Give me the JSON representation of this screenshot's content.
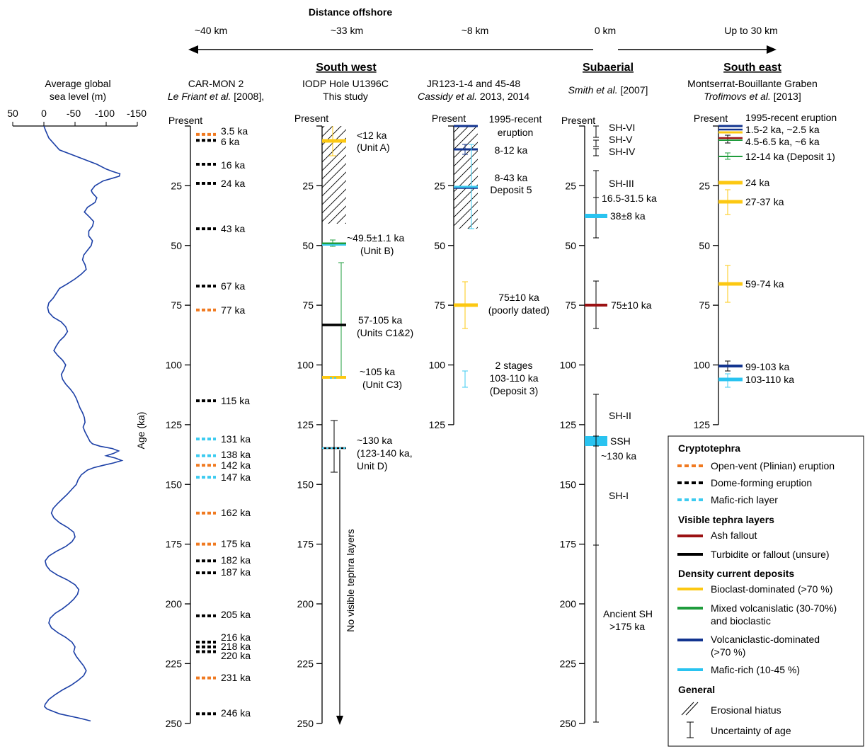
{
  "header": {
    "title": "Distance offshore",
    "distances": [
      "~40 km",
      "~33 km",
      "~8 km",
      "0 km",
      "Up to 30 km"
    ],
    "regions": [
      "South west",
      "Subaerial",
      "South east"
    ]
  },
  "sea_level": {
    "title_line1": "Average global",
    "title_line2": "sea level (m)",
    "tick_labels": [
      "50",
      "0",
      "-50",
      "-100",
      "-150"
    ]
  },
  "columns": {
    "carmon": {
      "title1": "CAR-MON 2",
      "title2_italic": "Le Friant et al.",
      "title2_rest": " [2008],",
      "present": "Present",
      "axis_title": "Age (ka)"
    },
    "iodp": {
      "title1": "IODP Hole U1396C",
      "title2": "This study",
      "present": "Present",
      "vertical_note": "No visible tephra layers"
    },
    "jr": {
      "title1": "JR123-1-4 and 45-48",
      "title2_italic": "Cassidy et al.",
      "title2_rest": " 2013, 2014",
      "present": "Present"
    },
    "smith": {
      "title2_italic": "Smith et al.",
      "title2_rest": " [2007]",
      "present": "Present"
    },
    "trof": {
      "title1": "Montserrat-Bouillante Graben",
      "title2_italic": "Trofimovs et al.",
      "title2_rest": " [2013]",
      "present": "Present"
    }
  },
  "axis_ticks": [
    "25",
    "50",
    "75",
    "100",
    "125",
    "150",
    "175",
    "200",
    "225",
    "250"
  ],
  "labels": {
    "carmon": [
      "3.5 ka",
      "6 ka",
      "16 ka",
      "24 ka",
      "43 ka",
      "67 ka",
      "77 ka",
      "115 ka",
      "131 ka",
      "138 ka",
      "142 ka",
      "147 ka",
      "162 ka",
      "175 ka",
      "182 ka",
      "187 ka",
      "205 ka",
      "216 ka",
      "218 ka",
      "220 ka",
      "231 ka",
      "246 ka"
    ],
    "iodp": [
      "<12 ka",
      "(Unit A)",
      "~49.5±1.1 ka",
      "(Unit B)",
      "57-105 ka",
      "(Units C1&2)",
      "~105 ka",
      "(Unit C3)",
      "~130 ka",
      "(123-140 ka,",
      "Unit D)"
    ],
    "jr": [
      "1995-recent",
      "eruption",
      "8-12 ka",
      "8-43 ka",
      "Deposit 5",
      "75±10 ka",
      "(poorly dated)",
      "2 stages",
      "103-110 ka",
      "(Deposit 3)"
    ],
    "smith": [
      "SH-VI",
      "SH-V",
      "SH-IV",
      "SH-III",
      "16.5-31.5 ka",
      "38±8 ka",
      "75±10 ka",
      "SH-II",
      "SSH",
      "~130 ka",
      "SH-I",
      "Ancient SH",
      ">175 ka"
    ],
    "trof": [
      "1995-recent eruption",
      "1.5-2 ka, ~2.5 ka",
      "4.5-6.5 ka, ~6 ka",
      "12-14 ka (Deposit 1)",
      "24 ka",
      "27-37 ka",
      "59-74 ka",
      "99-103 ka",
      "103-110 ka"
    ]
  },
  "legend": {
    "crypto_title": "Cryptotephra",
    "crypto_items": [
      "Open-vent (Plinian) eruption",
      "Dome-forming eruption",
      "Mafic-rich layer"
    ],
    "visible_title": "Visible tephra layers",
    "visible_items": [
      "Ash fallout",
      "Turbidite or fallout (unsure)"
    ],
    "density_title": "Density current deposits",
    "density_items": [
      "Bioclast-dominated (>70 %)",
      "Mixed volcanislatic (30-70%)",
      "and bioclastic",
      "Volcaniclastic-dominated",
      "(>70 %)",
      "Mafic-rich (10-45 %)"
    ],
    "general_title": "General",
    "general_items": [
      "Erosional hiatus",
      "Uncertainty of age"
    ]
  },
  "colors": {
    "open_vent": "#f07a21",
    "dome": "#000000",
    "mafic_crypto": "#3ccbf0",
    "ash_fallout": "#9b1113",
    "turbidite": "#000000",
    "bioclast": "#fcc812",
    "mixed": "#1f9c3c",
    "volcaniclastic": "#12348f",
    "mafic_rich": "#29c3f0",
    "sea_level_curve": "#1b3fa6",
    "uncertainty_cyan": "#3ccbf0",
    "uncertainty_green": "#1f9c3c",
    "uncertainty_yellow": "#fcc812"
  },
  "sea_level_curve": [
    [
      0,
      0
    ],
    [
      2,
      -3
    ],
    [
      5,
      -8
    ],
    [
      10,
      -25
    ],
    [
      12,
      -45
    ],
    [
      14,
      -65
    ],
    [
      16,
      -85
    ],
    [
      18,
      -100
    ],
    [
      19,
      -110
    ],
    [
      20,
      -122
    ],
    [
      21,
      -121
    ],
    [
      22,
      -108
    ],
    [
      23,
      -95
    ],
    [
      25,
      -82
    ],
    [
      27,
      -76
    ],
    [
      28,
      -78
    ],
    [
      30,
      -85
    ],
    [
      32,
      -82
    ],
    [
      34,
      -70
    ],
    [
      36,
      -65
    ],
    [
      38,
      -73
    ],
    [
      40,
      -80
    ],
    [
      42,
      -78
    ],
    [
      44,
      -72
    ],
    [
      46,
      -72
    ],
    [
      48,
      -78
    ],
    [
      50,
      -76
    ],
    [
      52,
      -70
    ],
    [
      54,
      -64
    ],
    [
      56,
      -62
    ],
    [
      58,
      -66
    ],
    [
      60,
      -68
    ],
    [
      62,
      -60
    ],
    [
      64,
      -50
    ],
    [
      66,
      -38
    ],
    [
      68,
      -25
    ],
    [
      70,
      -20
    ],
    [
      72,
      -15
    ],
    [
      74,
      -8
    ],
    [
      76,
      -6
    ],
    [
      78,
      -8
    ],
    [
      80,
      -15
    ],
    [
      82,
      -28
    ],
    [
      84,
      -35
    ],
    [
      86,
      -38
    ],
    [
      88,
      -33
    ],
    [
      90,
      -25
    ],
    [
      92,
      -20
    ],
    [
      94,
      -16
    ],
    [
      96,
      -22
    ],
    [
      98,
      -30
    ],
    [
      100,
      -35
    ],
    [
      102,
      -32
    ],
    [
      104,
      -28
    ],
    [
      106,
      -30
    ],
    [
      108,
      -35
    ],
    [
      110,
      -42
    ],
    [
      112,
      -48
    ],
    [
      114,
      -52
    ],
    [
      116,
      -55
    ],
    [
      118,
      -58
    ],
    [
      120,
      -62
    ],
    [
      122,
      -65
    ],
    [
      124,
      -66
    ],
    [
      126,
      -63
    ],
    [
      128,
      -66
    ],
    [
      130,
      -70
    ],
    [
      132,
      -74
    ],
    [
      133,
      -78
    ],
    [
      134,
      -90
    ],
    [
      135,
      -110
    ],
    [
      136,
      -120
    ],
    [
      137,
      -112
    ],
    [
      138,
      -100
    ],
    [
      139,
      -115
    ],
    [
      140,
      -125
    ],
    [
      141,
      -112
    ],
    [
      142,
      -95
    ],
    [
      143,
      -80
    ],
    [
      144,
      -70
    ],
    [
      145,
      -65
    ],
    [
      146,
      -60
    ],
    [
      148,
      -55
    ],
    [
      150,
      -52
    ],
    [
      152,
      -45
    ],
    [
      154,
      -38
    ],
    [
      156,
      -30
    ],
    [
      158,
      -22
    ],
    [
      160,
      -15
    ],
    [
      162,
      -12
    ],
    [
      164,
      -16
    ],
    [
      166,
      -25
    ],
    [
      168,
      -38
    ],
    [
      170,
      -48
    ],
    [
      172,
      -50
    ],
    [
      174,
      -45
    ],
    [
      176,
      -35
    ],
    [
      178,
      -20
    ],
    [
      180,
      -8
    ],
    [
      182,
      -2
    ],
    [
      184,
      -4
    ],
    [
      186,
      -10
    ],
    [
      188,
      -22
    ],
    [
      190,
      -38
    ],
    [
      192,
      -50
    ],
    [
      194,
      -56
    ],
    [
      196,
      -54
    ],
    [
      198,
      -48
    ],
    [
      200,
      -40
    ],
    [
      202,
      -30
    ],
    [
      204,
      -18
    ],
    [
      206,
      -10
    ],
    [
      208,
      -8
    ],
    [
      210,
      -12
    ],
    [
      212,
      -22
    ],
    [
      214,
      -35
    ],
    [
      216,
      -45
    ],
    [
      218,
      -50
    ],
    [
      220,
      -48
    ],
    [
      222,
      -52
    ],
    [
      224,
      -58
    ],
    [
      226,
      -64
    ],
    [
      228,
      -68
    ],
    [
      230,
      -64
    ],
    [
      232,
      -55
    ],
    [
      234,
      -44
    ],
    [
      236,
      -30
    ],
    [
      238,
      -18
    ],
    [
      240,
      -8
    ],
    [
      242,
      -2
    ],
    [
      243,
      -1
    ],
    [
      244,
      -5
    ],
    [
      246,
      -25
    ],
    [
      248,
      -60
    ],
    [
      249,
      -75
    ]
  ]
}
